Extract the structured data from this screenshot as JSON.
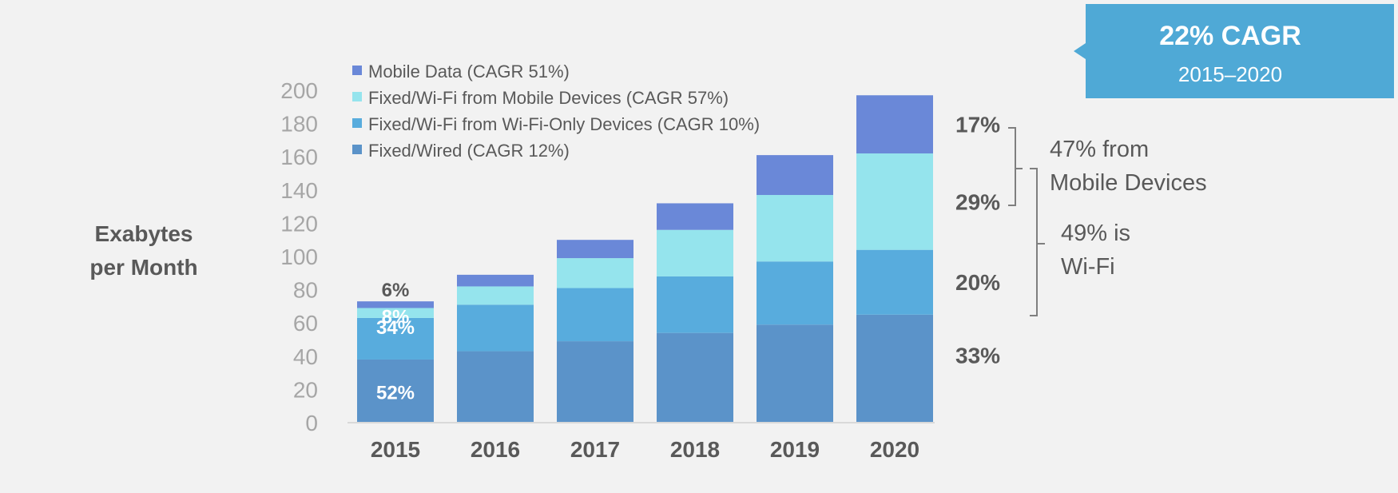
{
  "callout": {
    "title": "22% CAGR",
    "subtitle": "2015–2020"
  },
  "chart_data": {
    "type": "bar",
    "stacked": true,
    "ylabel": "Exabytes per Month",
    "ylabel_lines": [
      "Exabytes",
      "per Month"
    ],
    "ylim": [
      0,
      200
    ],
    "yticks": [
      0,
      20,
      40,
      60,
      80,
      100,
      120,
      140,
      160,
      180,
      200
    ],
    "categories": [
      "2015",
      "2016",
      "2017",
      "2018",
      "2019",
      "2020"
    ],
    "legend_position": "top-left",
    "series": [
      {
        "name": "Fixed/Wired (CAGR 12%)",
        "color": "#5b93c9",
        "values": [
          38,
          43,
          49,
          54,
          59,
          65
        ]
      },
      {
        "name": "Fixed/Wi-Fi from Wi-Fi-Only Devices (CAGR 10%)",
        "color": "#58acdd",
        "values": [
          25,
          28,
          32,
          34,
          38,
          39
        ]
      },
      {
        "name": "Fixed/Wi-Fi from Mobile Devices (CAGR 57%)",
        "color": "#95e4ed",
        "values": [
          6,
          11,
          18,
          28,
          40,
          58
        ]
      },
      {
        "name": "Mobile Data (CAGR 51%)",
        "color": "#6a88d8",
        "values": [
          4,
          7,
          11,
          16,
          24,
          35
        ]
      }
    ],
    "bar_labels_2015": [
      "52%",
      "34%",
      "8%",
      "6%"
    ],
    "share_labels_2020": [
      "33%",
      "20%",
      "29%",
      "17%"
    ],
    "annotations": {
      "mobile_line1": "47% from",
      "mobile_line2": "Mobile Devices",
      "wifi_line1": "49% is",
      "wifi_line2": "Wi-Fi"
    }
  },
  "colors": {
    "background": "#f2f2f2",
    "callout": "#4fa9d6",
    "axis_text": "#a6a6a6",
    "label_text": "#595959",
    "bracket": "#7f7f7f"
  }
}
